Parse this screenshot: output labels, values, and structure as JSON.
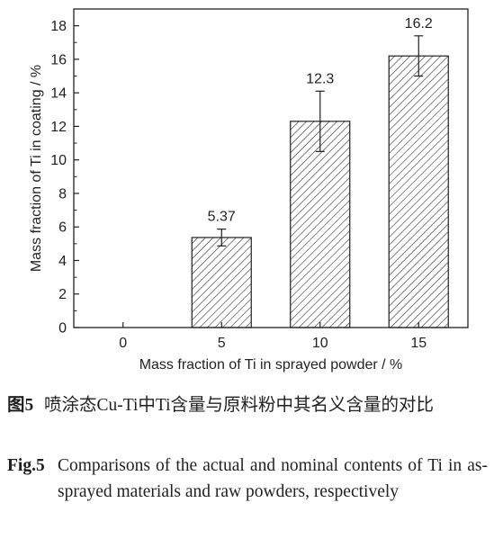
{
  "chart_data": {
    "type": "bar",
    "categories": [
      "0",
      "5",
      "10",
      "15"
    ],
    "values": [
      null,
      5.37,
      12.3,
      16.2
    ],
    "value_labels": [
      "",
      "5.37",
      "12.3",
      "16.2"
    ],
    "error_bars": [
      null,
      0.5,
      1.8,
      1.2
    ],
    "xlabel": "Mass fraction of Ti in sprayed powder / %",
    "ylabel": "Mass fraction of Ti in coating / %",
    "ylim": [
      0,
      19
    ],
    "yticks": [
      "0",
      "2",
      "4",
      "6",
      "8",
      "10",
      "12",
      "14",
      "16",
      "18"
    ],
    "bar_fill": "hatched",
    "grid": false
  },
  "caption_cn": {
    "label": "图5",
    "text": "喷涂态Cu-Ti中Ti含量与原料粉中其名义含量的对比"
  },
  "caption_en": {
    "label": "Fig.5",
    "text": "Comparisons of the actual and nominal contents of Ti in as-sprayed materials and raw powders, respectively"
  },
  "colors": {
    "ink": "#231f20",
    "background": "#ffffff"
  }
}
